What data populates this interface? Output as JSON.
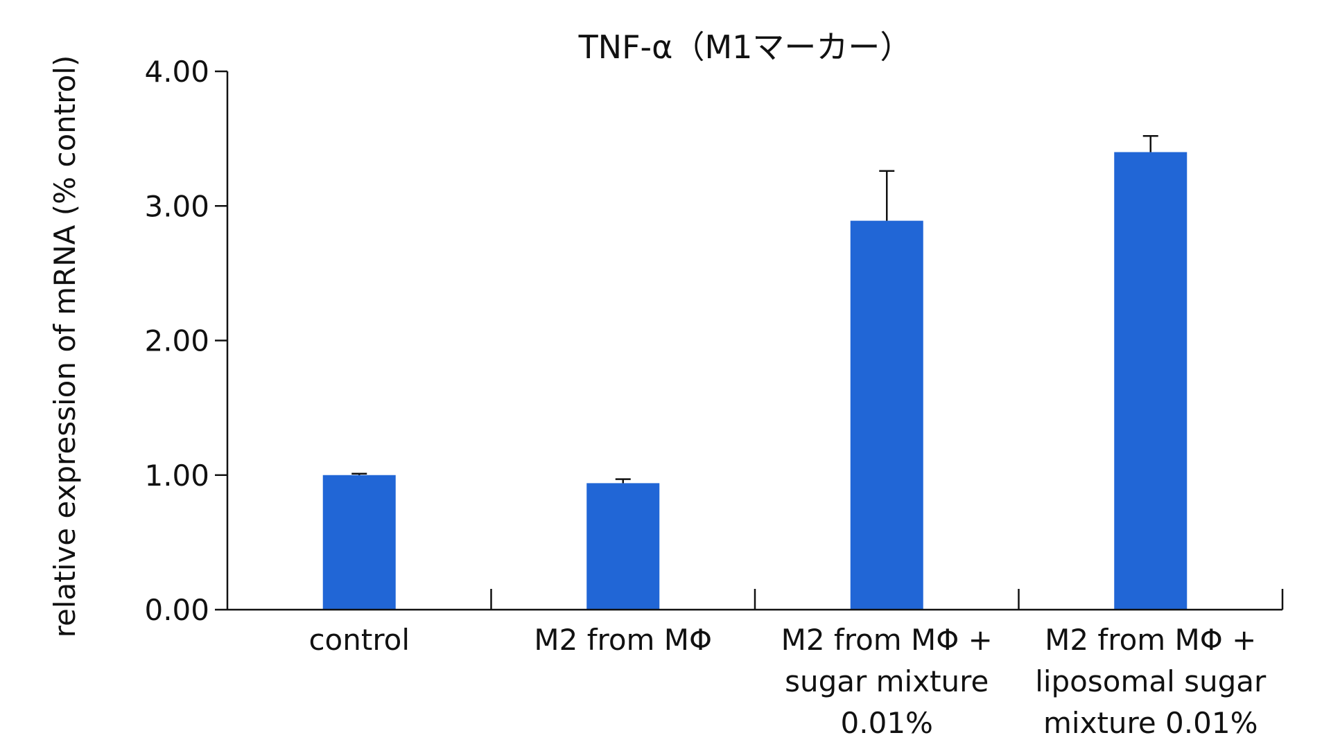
{
  "chart_data": {
    "type": "bar",
    "title": "TNF-α（M1マーカー）",
    "ylabel": "relative expression of mRNA (% control)",
    "xlabel": "",
    "categories": [
      [
        "control"
      ],
      [
        "M2 from MΦ"
      ],
      [
        "M2 from MΦ +",
        "sugar mixture",
        "0.01%"
      ],
      [
        "M2 from MΦ +",
        "liposomal sugar",
        "mixture 0.01%"
      ]
    ],
    "values": [
      1.0,
      0.94,
      2.89,
      3.4
    ],
    "errors": [
      0.01,
      0.03,
      0.37,
      0.12
    ],
    "ylim": [
      0,
      4
    ],
    "yticks": [
      "0.00",
      "1.00",
      "2.00",
      "3.00",
      "4.00"
    ],
    "grid": false,
    "legend": "none",
    "colors": {
      "bar": "#2166d6",
      "axis": "#111111",
      "error_bar": "#111111"
    }
  }
}
